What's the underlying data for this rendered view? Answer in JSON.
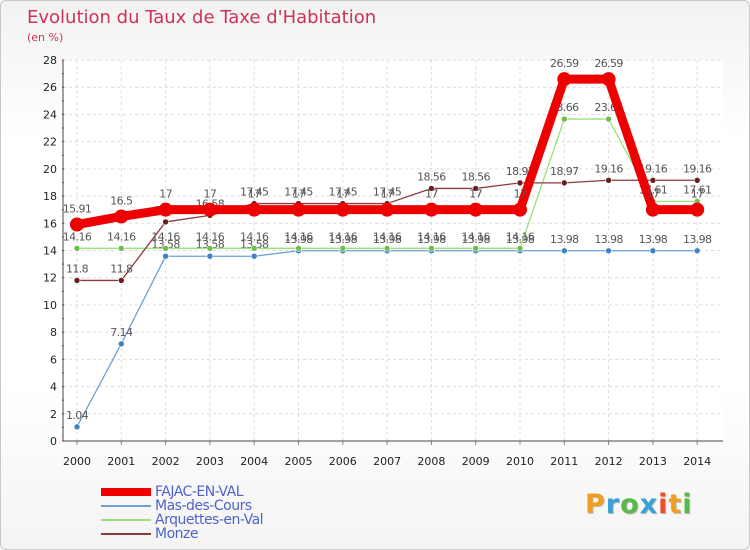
{
  "title": "Evolution du Taux de Taxe d'Habitation",
  "subtitle": "(en %)",
  "brand": {
    "letters": [
      "P",
      "r",
      "o",
      "x",
      "i",
      "t",
      "i"
    ],
    "colors": [
      "#f0a020",
      "#3aa0d8",
      "#58b848",
      "#3aa0d8",
      "#e85030",
      "#f0a020",
      "#58b848"
    ]
  },
  "chart_data": {
    "type": "line",
    "x": [
      2000,
      2001,
      2002,
      2003,
      2004,
      2005,
      2006,
      2007,
      2008,
      2009,
      2010,
      2011,
      2012,
      2013,
      2014
    ],
    "x_tick_labels": [
      "2000",
      "2001",
      "2002",
      "2003",
      "2004",
      "2005",
      "2006",
      "2007",
      "2008",
      "2009",
      "2010",
      "2011",
      "2012",
      "2013",
      "2014"
    ],
    "ylim": [
      0,
      28
    ],
    "y_ticks": [
      "0",
      "2",
      "4",
      "6",
      "8",
      "10",
      "12",
      "14",
      "16",
      "18",
      "20",
      "22",
      "24",
      "26",
      "28"
    ],
    "grid": true,
    "legend_position": "bottom-left",
    "series": [
      {
        "name": "Mas-des-Cours",
        "color": "#6ea0d6",
        "marker": "#3b82c6",
        "values": [
          1.04,
          7.14,
          13.58,
          13.58,
          13.58,
          13.98,
          13.98,
          13.98,
          13.98,
          13.98,
          13.98,
          13.98,
          13.98,
          13.98,
          13.98
        ],
        "labels": [
          "1.04",
          "7.14",
          "13.58",
          "13.58",
          "13.58",
          "13.98",
          "13.98",
          "13.98",
          "13.98",
          "13.98",
          "13.98",
          "13.98",
          "13.98",
          "13.98",
          "13.98"
        ]
      },
      {
        "name": "Arquettes-en-Val",
        "color": "#9be07a",
        "marker": "#6cc04a",
        "values": [
          14.16,
          14.16,
          14.16,
          14.16,
          14.16,
          14.16,
          14.16,
          14.16,
          14.16,
          14.16,
          14.16,
          23.66,
          23.66,
          17.61,
          17.61
        ],
        "labels": [
          "14.16",
          "14.16",
          "14.16",
          "14.16",
          "14.16",
          "14.16",
          "14.16",
          "14.16",
          "14.16",
          "14.16",
          "14.16",
          "23.66",
          "23.66",
          "17.61",
          "17.61"
        ]
      },
      {
        "name": "Monze",
        "color": "#8a3a3a",
        "marker": "#6b1e1e",
        "values": [
          11.8,
          11.8,
          16.1,
          16.58,
          17.45,
          17.45,
          17.45,
          17.45,
          18.56,
          18.56,
          18.97,
          18.97,
          19.16,
          19.16,
          19.16
        ],
        "labels": [
          "11.8",
          "11.8",
          "16.1",
          "16.58",
          "17.45",
          "17.45",
          "17.45",
          "17.45",
          "18.56",
          "18.56",
          "18.97",
          "18.97",
          "19.16",
          "19.16",
          "19.16"
        ]
      },
      {
        "name": "FAJAC-EN-VAL",
        "color": "#ee0000",
        "marker": "#ee0000",
        "values": [
          15.91,
          16.5,
          17,
          17,
          17,
          17,
          17,
          17,
          17,
          17,
          17,
          26.59,
          26.59,
          17,
          17
        ],
        "labels": [
          "15.91",
          "16.5",
          "17",
          "17",
          "17",
          "17",
          "17",
          "17",
          "17",
          "17",
          "17",
          "26.59",
          "26.59",
          "17",
          "17"
        ]
      }
    ],
    "legend": [
      {
        "name": "FAJAC-EN-VAL",
        "color": "#ee0000",
        "thick": true
      },
      {
        "name": "Mas-des-Cours",
        "color": "#6ea0d6",
        "thick": false
      },
      {
        "name": "Arquettes-en-Val",
        "color": "#9be07a",
        "thick": false
      },
      {
        "name": "Monze",
        "color": "#8a3a3a",
        "thick": false
      }
    ]
  }
}
